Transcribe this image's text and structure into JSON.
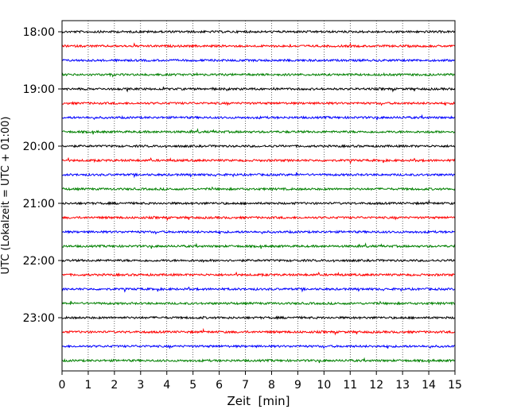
{
  "chart_data": {
    "type": "line",
    "title": "",
    "xlabel": "Zeit  [min]",
    "ylabel": "UTC (Lokalzeit = UTC + 01:00)",
    "xlim": [
      0,
      15
    ],
    "x_ticks": [
      0,
      1,
      2,
      3,
      4,
      5,
      6,
      7,
      8,
      9,
      10,
      11,
      12,
      13,
      14,
      15
    ],
    "y_ticks": [
      "18:00",
      "19:00",
      "20:00",
      "21:00",
      "22:00",
      "23:00"
    ],
    "grid": "vertical dotted",
    "trace_interval_minutes": 15,
    "trace_start": "18:00",
    "trace_end": "23:45",
    "trace_colors": [
      "#000000",
      "#ff0000",
      "#0000ff",
      "#008000"
    ],
    "series": [
      {
        "start": "18:00",
        "color": "#000000"
      },
      {
        "start": "18:15",
        "color": "#ff0000"
      },
      {
        "start": "18:30",
        "color": "#0000ff"
      },
      {
        "start": "18:45",
        "color": "#008000"
      },
      {
        "start": "19:00",
        "color": "#000000"
      },
      {
        "start": "19:15",
        "color": "#ff0000"
      },
      {
        "start": "19:30",
        "color": "#0000ff"
      },
      {
        "start": "19:45",
        "color": "#008000"
      },
      {
        "start": "20:00",
        "color": "#000000"
      },
      {
        "start": "20:15",
        "color": "#ff0000"
      },
      {
        "start": "20:30",
        "color": "#0000ff"
      },
      {
        "start": "20:45",
        "color": "#008000"
      },
      {
        "start": "21:00",
        "color": "#000000"
      },
      {
        "start": "21:15",
        "color": "#ff0000"
      },
      {
        "start": "21:30",
        "color": "#0000ff"
      },
      {
        "start": "21:45",
        "color": "#008000"
      },
      {
        "start": "22:00",
        "color": "#000000"
      },
      {
        "start": "22:15",
        "color": "#ff0000"
      },
      {
        "start": "22:30",
        "color": "#0000ff"
      },
      {
        "start": "22:45",
        "color": "#008000"
      },
      {
        "start": "23:00",
        "color": "#000000"
      },
      {
        "start": "23:15",
        "color": "#ff0000"
      },
      {
        "start": "23:30",
        "color": "#0000ff"
      },
      {
        "start": "23:45",
        "color": "#008000"
      }
    ]
  }
}
